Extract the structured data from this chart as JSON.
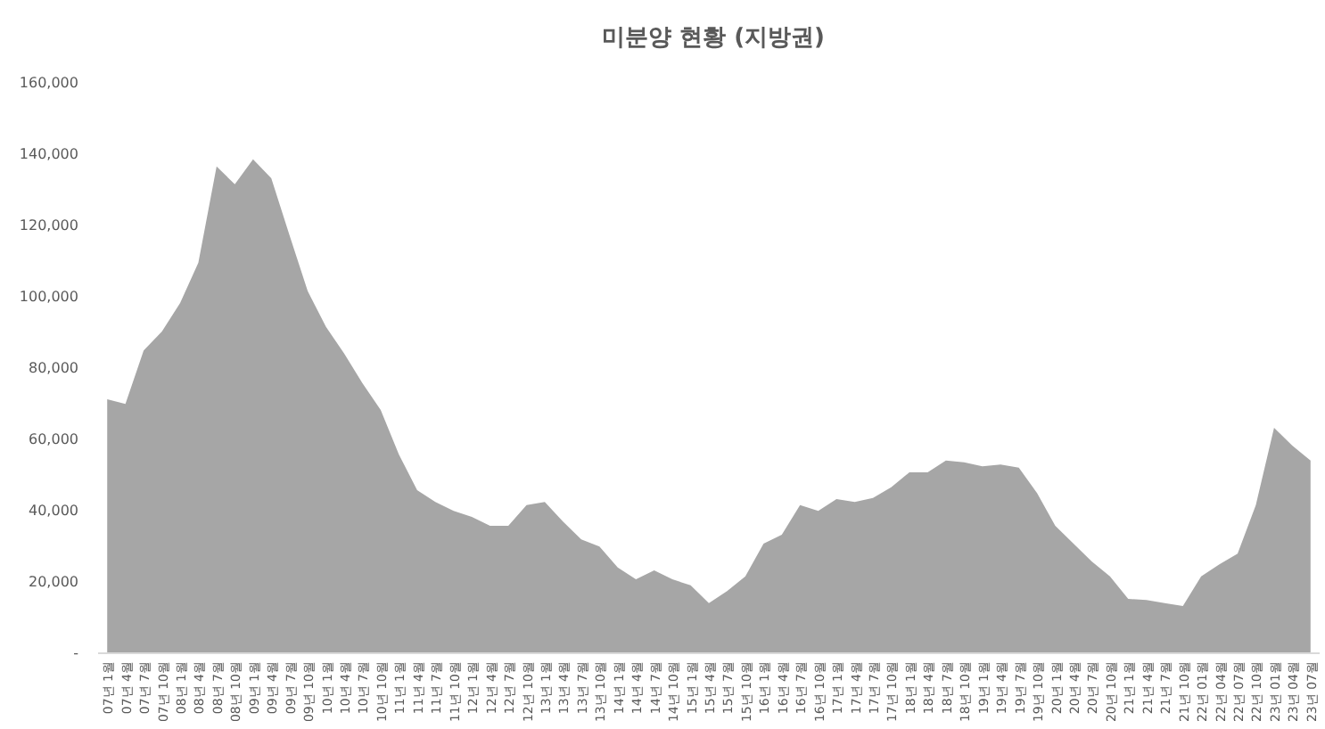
{
  "chart_data": {
    "type": "area",
    "title": "미분양 현황 (지방권)",
    "categories": [
      "07년 1월",
      "07년 4월",
      "07년 7월",
      "07년 10월",
      "08년 1월",
      "08년 4월",
      "08년 7월",
      "08년 10월",
      "09년 1월",
      "09년 4월",
      "09년 7월",
      "09년 10월",
      "10년 1월",
      "10년 4월",
      "10년 7월",
      "10년 10월",
      "11년 1월",
      "11년 4월",
      "11년 7월",
      "11년 10월",
      "12년 1월",
      "12년 4월",
      "12년 7월",
      "12년 10월",
      "13년 1월",
      "13년 4월",
      "13년 7월",
      "13년 10월",
      "14년 1월",
      "14년 4월",
      "14년 7월",
      "14년 10월",
      "15년 1월",
      "15년 4월",
      "15년 7월",
      "15년 10월",
      "16년 1월",
      "16년 4월",
      "16년 7월",
      "16년 10월",
      "17년 1월",
      "17년 4월",
      "17년 7월",
      "17년 10월",
      "18년 1월",
      "18년 4월",
      "18년 7월",
      "18년 10월",
      "19년 1월",
      "19년 4월",
      "19년 7월",
      "19년 10월",
      "20년 1월",
      "20년 4월",
      "20년 7월",
      "20년 10월",
      "21년 1월",
      "21년 4월",
      "21년 7월",
      "21년 10월",
      "22년 01월",
      "22년 04월",
      "22년 07월",
      "22년 10월",
      "23년 01월",
      "23년 04월",
      "23년 07월"
    ],
    "values": [
      71000,
      69700,
      84700,
      90000,
      98000,
      109300,
      136300,
      131300,
      138300,
      133000,
      117000,
      101300,
      91300,
      83800,
      75500,
      68000,
      55500,
      45500,
      42200,
      39700,
      38000,
      35500,
      35500,
      41300,
      42200,
      36700,
      31700,
      29700,
      23800,
      20500,
      23000,
      20500,
      18800,
      13800,
      17200,
      21300,
      30500,
      33000,
      41300,
      39700,
      43000,
      42200,
      43300,
      46300,
      50500,
      50500,
      53800,
      53300,
      52200,
      52700,
      51800,
      44700,
      35500,
      30500,
      25500,
      21300,
      15000,
      14700,
      13800,
      13000,
      21300,
      24700,
      27700,
      41300,
      63000,
      58000,
      53800
    ],
    "color": "#a6a6a6",
    "ylim": [
      0,
      160000
    ],
    "yticks": [
      {
        "value": 0,
        "label": "-"
      },
      {
        "value": 20000,
        "label": "20,000"
      },
      {
        "value": 40000,
        "label": "40,000"
      },
      {
        "value": 60000,
        "label": "60,000"
      },
      {
        "value": 80000,
        "label": "80,000"
      },
      {
        "value": 100000,
        "label": "100,000"
      },
      {
        "value": 120000,
        "label": "120,000"
      },
      {
        "value": 140000,
        "label": "140,000"
      },
      {
        "value": 160000,
        "label": "160,000"
      }
    ]
  }
}
